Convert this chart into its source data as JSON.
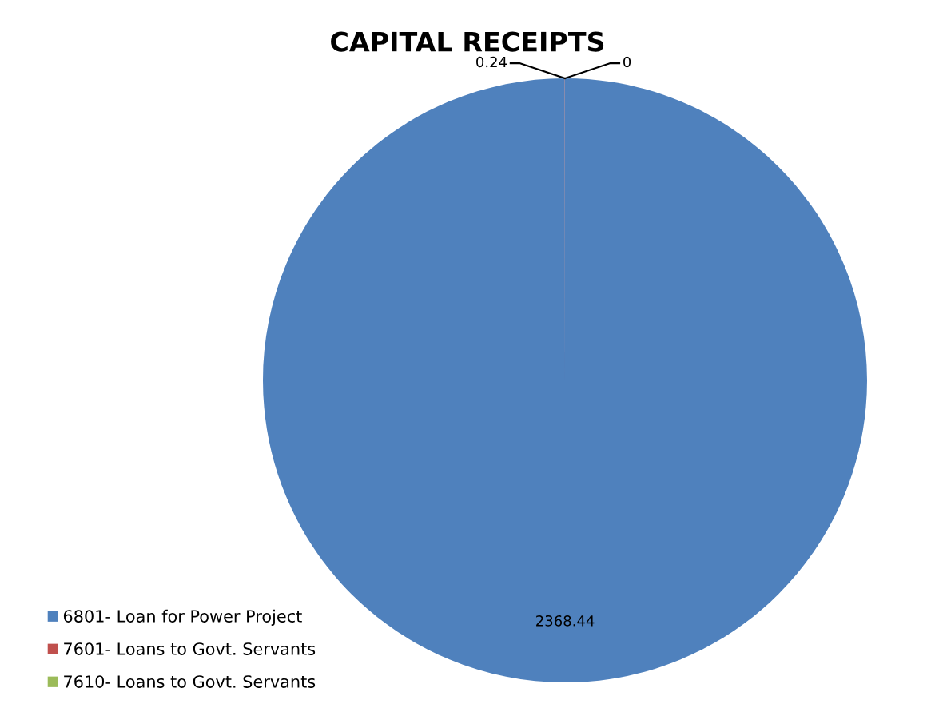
{
  "chart_data": {
    "type": "pie",
    "title": "CAPITAL RECEIPTS",
    "categories": [
      "6801- Loan for Power Project",
      "7601- Loans to Govt. Servants",
      "7610- Loans to Govt. Servants"
    ],
    "values": [
      2368.44,
      0.24,
      0
    ],
    "colors": [
      "#4f81bd",
      "#c0504d",
      "#9bbb59"
    ],
    "value_labels": [
      "2368.44",
      "0.24",
      "0"
    ],
    "legend": "bottom left"
  }
}
